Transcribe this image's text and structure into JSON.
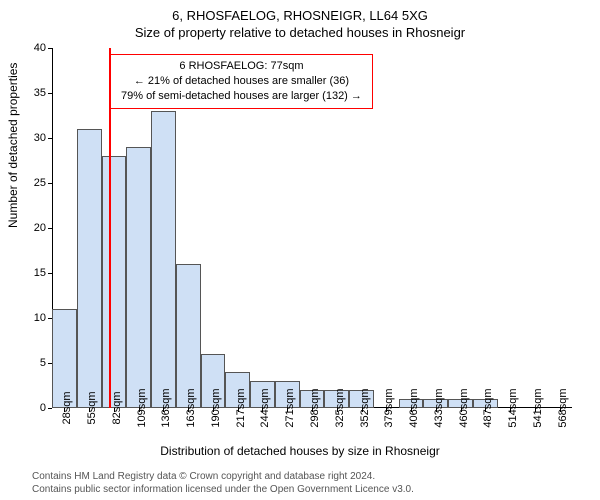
{
  "titles": {
    "main": "6, RHOSFAELOG, RHOSNEIGR, LL64 5XG",
    "sub": "Size of property relative to detached houses in Rhosneigr"
  },
  "axes": {
    "y_label": "Number of detached properties",
    "x_label": "Distribution of detached houses by size in Rhosneigr",
    "ylim": [
      0,
      40
    ],
    "y_tick_step": 5,
    "y_ticks": [
      0,
      5,
      10,
      15,
      20,
      25,
      30,
      35,
      40
    ]
  },
  "chart": {
    "type": "histogram",
    "background_color": "#ffffff",
    "bar_fill": "#cfe0f5",
    "bar_stroke": "#555555",
    "bar_stroke_width": 0.5,
    "marker_color": "#ff0000",
    "marker_x_value": 77,
    "x_start": 14.5,
    "bin_width": 27,
    "n_bins": 21,
    "values": [
      11,
      31,
      28,
      29,
      33,
      16,
      6,
      4,
      3,
      3,
      2,
      2,
      2,
      0,
      1,
      1,
      1,
      1,
      0,
      0,
      0
    ],
    "x_tick_labels": [
      "28sqm",
      "55sqm",
      "82sqm",
      "109sqm",
      "136sqm",
      "163sqm",
      "190sqm",
      "217sqm",
      "244sqm",
      "271sqm",
      "298sqm",
      "325sqm",
      "352sqm",
      "379sqm",
      "406sqm",
      "433sqm",
      "460sqm",
      "487sqm",
      "514sqm",
      "541sqm",
      "568sqm"
    ]
  },
  "info_box": {
    "line1": "6 RHOSFAELOG: 77sqm",
    "line2": "← 21% of detached houses are smaller (36)",
    "line3": "79% of semi-detached houses are larger (132) →",
    "border_color": "#ff0000"
  },
  "footer": {
    "line1": "Contains HM Land Registry data © Crown copyright and database right 2024.",
    "line2": "Contains public sector information licensed under the Open Government Licence v3.0."
  }
}
